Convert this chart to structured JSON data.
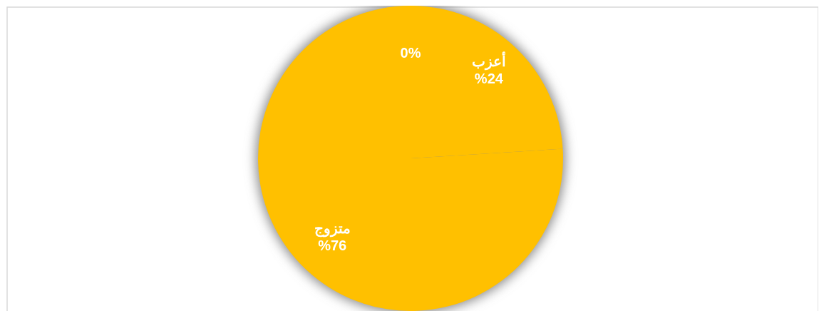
{
  "chart_data": {
    "type": "pie",
    "categories": [
      "أعزب",
      "متزوج",
      null
    ],
    "values": [
      24,
      76,
      0
    ],
    "colors": [
      "#ffc000",
      "#ffc000",
      "#ffc000"
    ],
    "value_labels": [
      "%24",
      "%76",
      "0%"
    ]
  }
}
